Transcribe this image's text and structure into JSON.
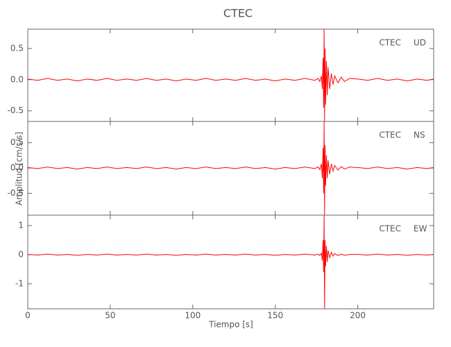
{
  "figure": {
    "title": "CTEC",
    "x_label": "Tiempo [s]",
    "y_label": "Amplitud [cm/s/s]"
  },
  "chart_data": [
    {
      "type": "line",
      "station": "CTEC",
      "component": "UD",
      "color": "#ff0000",
      "xlim": [
        0,
        246
      ],
      "xticks": [
        0,
        50,
        100,
        150,
        200
      ],
      "ylim": [
        -0.67,
        0.81
      ],
      "yticks": [
        0.5,
        {
          "value": 0,
          "label": "0.0"
        },
        -0.5
      ],
      "x": [
        0,
        6,
        12,
        18,
        24,
        30,
        36,
        42,
        48,
        54,
        60,
        66,
        72,
        78,
        84,
        90,
        96,
        102,
        108,
        114,
        120,
        126,
        132,
        138,
        144,
        150,
        156,
        162,
        168,
        174,
        176,
        177,
        178,
        178.5,
        179,
        179.3,
        179.6,
        179.9,
        180.2,
        180.5,
        181,
        181.5,
        182,
        183,
        184,
        185,
        186,
        188,
        190,
        192,
        195,
        200,
        206,
        212,
        218,
        224,
        230,
        236,
        242,
        246
      ],
      "values": [
        0.01,
        -0.01,
        0.02,
        -0.01,
        0.01,
        -0.02,
        0.01,
        -0.01,
        0.02,
        -0.01,
        0.01,
        -0.01,
        0.02,
        -0.01,
        0.01,
        -0.02,
        0.01,
        -0.01,
        0.02,
        -0.01,
        0.01,
        -0.01,
        0.02,
        -0.01,
        0.01,
        -0.02,
        0.01,
        -0.01,
        0.02,
        -0.01,
        0.02,
        -0.03,
        0.06,
        -0.15,
        0.35,
        -0.45,
        0.81,
        -0.67,
        0.5,
        -0.4,
        0.3,
        -0.25,
        0.2,
        -0.15,
        0.1,
        -0.08,
        0.06,
        -0.05,
        0.04,
        -0.03,
        0.02,
        0.01,
        -0.01,
        0.02,
        -0.01,
        0.01,
        -0.02,
        0.01,
        -0.01,
        0.01
      ]
    },
    {
      "type": "line",
      "station": "CTEC",
      "component": "NS",
      "color": "#ff0000",
      "xlim": [
        0,
        246
      ],
      "xticks": [
        0,
        50,
        100,
        150,
        200
      ],
      "ylim": [
        -0.93,
        0.92
      ],
      "yticks": [
        0.5,
        {
          "value": 0,
          "label": "0.0"
        },
        -0.5
      ],
      "x": [
        0,
        6,
        12,
        18,
        24,
        30,
        36,
        42,
        48,
        54,
        60,
        66,
        72,
        78,
        84,
        90,
        96,
        102,
        108,
        114,
        120,
        126,
        132,
        138,
        144,
        150,
        156,
        162,
        168,
        174,
        176,
        177,
        178,
        178.5,
        179,
        179.3,
        179.6,
        179.9,
        180.2,
        180.5,
        181,
        181.5,
        182,
        183,
        184,
        185,
        186,
        188,
        190,
        192,
        195,
        200,
        206,
        212,
        218,
        224,
        230,
        236,
        242,
        246
      ],
      "values": [
        0.01,
        -0.01,
        0.02,
        -0.01,
        0.01,
        -0.02,
        0.01,
        -0.01,
        0.02,
        -0.01,
        0.01,
        -0.01,
        0.02,
        -0.01,
        0.01,
        -0.02,
        0.01,
        -0.01,
        0.02,
        -0.01,
        0.01,
        -0.01,
        0.02,
        -0.01,
        0.01,
        -0.02,
        0.01,
        -0.01,
        0.02,
        -0.01,
        0.02,
        -0.03,
        0.08,
        -0.2,
        0.4,
        -0.5,
        0.92,
        -0.93,
        0.45,
        -0.35,
        0.25,
        -0.2,
        0.15,
        -0.12,
        0.08,
        -0.06,
        0.05,
        -0.04,
        0.03,
        -0.02,
        0.02,
        0.01,
        -0.01,
        0.02,
        -0.01,
        0.01,
        -0.02,
        0.01,
        -0.01,
        0.01
      ]
    },
    {
      "type": "line",
      "station": "CTEC",
      "component": "EW",
      "color": "#ff0000",
      "xlim": [
        0,
        246
      ],
      "xticks": [
        0,
        50,
        100,
        150,
        200
      ],
      "ylim": [
        -1.86,
        1.36
      ],
      "yticks": [
        1,
        0,
        -1
      ],
      "x": [
        0,
        6,
        12,
        18,
        24,
        30,
        36,
        42,
        48,
        54,
        60,
        66,
        72,
        78,
        84,
        90,
        96,
        102,
        108,
        114,
        120,
        126,
        132,
        138,
        144,
        150,
        156,
        162,
        168,
        174,
        176,
        177,
        178,
        178.5,
        179,
        179.3,
        179.6,
        179.9,
        180.2,
        180.5,
        181,
        181.5,
        182,
        183,
        184,
        185,
        186,
        188,
        190,
        192,
        195,
        200,
        206,
        212,
        218,
        224,
        230,
        236,
        242,
        246
      ],
      "values": [
        0.01,
        -0.01,
        0.02,
        -0.01,
        0.01,
        -0.02,
        0.01,
        -0.01,
        0.02,
        -0.01,
        0.01,
        -0.01,
        0.02,
        -0.01,
        0.01,
        -0.02,
        0.01,
        -0.01,
        0.02,
        -0.01,
        0.01,
        -0.01,
        0.02,
        -0.01,
        0.01,
        -0.02,
        0.01,
        -0.01,
        0.02,
        -0.01,
        0.02,
        -0.03,
        0.05,
        -0.2,
        0.5,
        -0.6,
        1.36,
        -1.86,
        0.5,
        -0.4,
        0.3,
        -0.25,
        0.15,
        -0.1,
        0.08,
        -0.05,
        0.04,
        -0.03,
        0.02,
        -0.02,
        0.01,
        0.01,
        -0.01,
        0.02,
        -0.01,
        0.01,
        -0.02,
        0.01,
        -0.01,
        0.01
      ]
    }
  ]
}
